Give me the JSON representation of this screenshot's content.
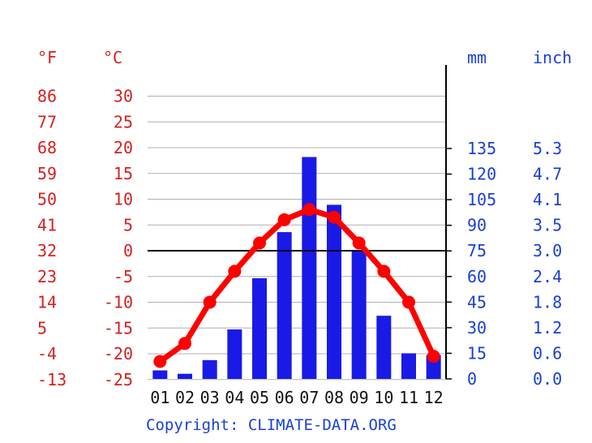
{
  "chart_data": {
    "type": "bar+line",
    "units": {
      "f": "°F",
      "c": "°C",
      "mm": "mm",
      "inch": "inch"
    },
    "copyright": "Copyright: CLIMATE-DATA.ORG",
    "categories": [
      "01",
      "02",
      "03",
      "04",
      "05",
      "06",
      "07",
      "08",
      "09",
      "10",
      "11",
      "12"
    ],
    "left_ticks_c": [
      "30",
      "25",
      "20",
      "15",
      "10",
      "5",
      "0",
      "-5",
      "-10",
      "-15",
      "-20",
      "-25"
    ],
    "left_ticks_f": [
      "86",
      "77",
      "68",
      "59",
      "50",
      "41",
      "32",
      "23",
      "14",
      "5",
      "-4",
      "-13"
    ],
    "right_ticks_mm": [
      "135",
      "120",
      "105",
      "90",
      "75",
      "60",
      "45",
      "30",
      "15",
      "0"
    ],
    "right_ticks_inch": [
      "5.3",
      "4.7",
      "4.1",
      "3.5",
      "3.0",
      "2.4",
      "1.8",
      "1.2",
      "0.6",
      "0.0"
    ],
    "temp_ylim_c": [
      -25,
      30
    ],
    "precip_ylim_mm": [
      0,
      135
    ],
    "series": [
      {
        "axis": "precipitation",
        "values": [
          5,
          3,
          11,
          29,
          59,
          86,
          130,
          102,
          75,
          37,
          15,
          14
        ]
      },
      {
        "axis": "temperature",
        "values": [
          -21.5,
          -18,
          -10,
          -4,
          1.5,
          6,
          8,
          6.5,
          1.5,
          -4,
          -10,
          -20.5
        ]
      }
    ],
    "colors": {
      "temp": "#ff0000",
      "precip": "#1a1ae6",
      "grid": "#b0b0b0",
      "axis": "#000000"
    }
  }
}
